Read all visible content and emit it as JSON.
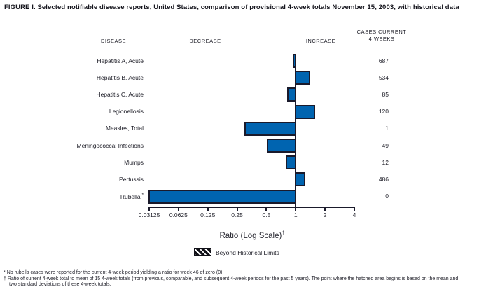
{
  "title": "FIGURE I. Selected notifiable disease reports, United States, comparison of provisional 4-week totals November 15, 2003, with historical data",
  "column_headers": {
    "disease": "DISEASE",
    "decrease": "DECREASE",
    "increase": "INCREASE",
    "cases_line1": "CASES CURRENT",
    "cases_line2": "4 WEEKS"
  },
  "chart_data": {
    "type": "bar",
    "orientation": "horizontal",
    "scale": "log",
    "title": "Selected notifiable disease reports, ratio of current 4-week total to historical mean",
    "xlabel": "Ratio (Log Scale)",
    "xlabel_sup": "†",
    "xlim": [
      0.03125,
      4
    ],
    "ticks": [
      "0.03125",
      "0.0625",
      "0.125",
      "0.25",
      "0.5",
      "1",
      "2",
      "4"
    ],
    "grid": false,
    "legend_position": "bottom",
    "rows": [
      {
        "disease": "Hepatitis A, Acute",
        "sup": "",
        "ratio": 0.95,
        "cases": "687"
      },
      {
        "disease": "Hepatitis B, Acute",
        "sup": "",
        "ratio": 1.39,
        "cases": "534"
      },
      {
        "disease": "Hepatitis C, Acute",
        "sup": "",
        "ratio": 0.83,
        "cases": "85"
      },
      {
        "disease": "Legionellosis",
        "sup": "",
        "ratio": 1.55,
        "cases": "120"
      },
      {
        "disease": "Measles, Total",
        "sup": "",
        "ratio": 0.3,
        "cases": "1"
      },
      {
        "disease": "Meningococcal Infections",
        "sup": "",
        "ratio": 0.51,
        "cases": "49"
      },
      {
        "disease": "Mumps",
        "sup": "",
        "ratio": 0.8,
        "cases": "12"
      },
      {
        "disease": "Pertussis",
        "sup": "",
        "ratio": 1.24,
        "cases": "486"
      },
      {
        "disease": "Rubella",
        "sup": "*",
        "ratio": 0,
        "cases": "0"
      }
    ],
    "legend": {
      "swatch": "diagonal-hatch",
      "label": "Beyond Historical Limits"
    },
    "colors": {
      "bar_fill": "#0064b0",
      "bar_border": "#1a1a2b",
      "text": "#1c1c26"
    }
  },
  "footnotes": [
    {
      "marker": "*",
      "text": "No rubella cases were reported for the current 4-week period yielding a ratio for week 46 of zero (0)."
    },
    {
      "marker": "†",
      "text": "Ratio of current 4-week total to mean of 15 4-week totals (from previous, comparable, and subsequent 4-week periods for the past 5 years). The point where the hatched area begins is based on the mean and two standard deviations of these 4-week totals."
    }
  ]
}
